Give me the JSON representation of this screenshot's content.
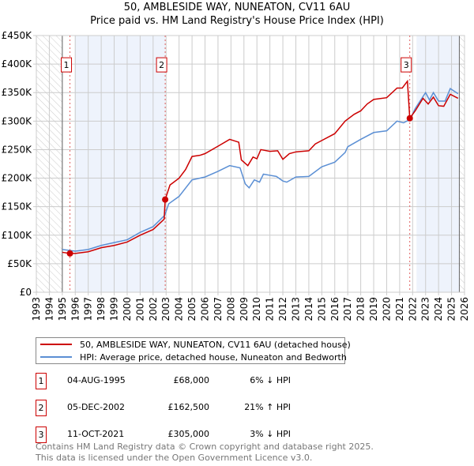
{
  "chart_data": {
    "type": "line",
    "title": "50, AMBLESIDE WAY, NUNEATON, CV11 6AU",
    "subtitle": "Price paid vs. HM Land Registry's House Price Index (HPI)",
    "xlim": [
      1993,
      2026
    ],
    "ylim": [
      0,
      450000
    ],
    "x_ticks": [
      "1993",
      "1994",
      "1995",
      "1996",
      "1997",
      "1998",
      "1999",
      "2000",
      "2001",
      "2002",
      "2003",
      "2004",
      "2005",
      "2006",
      "2007",
      "2008",
      "2009",
      "2010",
      "2011",
      "2012",
      "2013",
      "2014",
      "2015",
      "2016",
      "2017",
      "2018",
      "2019",
      "2020",
      "2021",
      "2022",
      "2023",
      "2024",
      "2025",
      "2026"
    ],
    "y_ticks": [
      {
        "v": 0,
        "l": "£0"
      },
      {
        "v": 50000,
        "l": "£50K"
      },
      {
        "v": 100000,
        "l": "£100K"
      },
      {
        "v": 150000,
        "l": "£150K"
      },
      {
        "v": 200000,
        "l": "£200K"
      },
      {
        "v": 250000,
        "l": "£250K"
      },
      {
        "v": 300000,
        "l": "£300K"
      },
      {
        "v": 350000,
        "l": "£350K"
      },
      {
        "v": 400000,
        "l": "£400K"
      },
      {
        "v": 450000,
        "l": "£450K"
      }
    ],
    "series": [
      {
        "name": "50, AMBLESIDE WAY, NUNEATON, CV11 6AU (detached house)",
        "color": "#cc0000",
        "x": [
          1995,
          1995.59,
          1996,
          1997,
          1998,
          1999,
          2000,
          2001,
          2002,
          2002.85,
          2002.93,
          2003.3,
          2004,
          2004.5,
          2005,
          2005.6,
          2006,
          2007,
          2007.9,
          2008.6,
          2008.8,
          2009.3,
          2009.7,
          2010,
          2010.3,
          2011,
          2011.6,
          2012,
          2012.5,
          2013,
          2014,
          2014.5,
          2015,
          2016,
          2016.8,
          2017.5,
          2018,
          2018.5,
          2019,
          2020,
          2020.8,
          2021.2,
          2021.6,
          2021.78,
          2022.2,
          2022.8,
          2023.2,
          2023.6,
          2024,
          2024.4,
          2024.9,
          2025.5
        ],
        "y": [
          70000,
          68000,
          68000,
          71000,
          78000,
          82000,
          88000,
          100000,
          110000,
          128000,
          162500,
          188000,
          200000,
          215000,
          238000,
          240000,
          243000,
          256000,
          268000,
          263000,
          232000,
          222000,
          237000,
          234000,
          250000,
          247000,
          248000,
          233000,
          243000,
          246000,
          248000,
          260000,
          266000,
          278000,
          300000,
          312000,
          318000,
          330000,
          338000,
          341000,
          358000,
          358000,
          370000,
          305000,
          318000,
          340000,
          330000,
          342000,
          327000,
          326000,
          347000,
          340000
        ]
      },
      {
        "name": "HPI: Average price, detached house, Nuneaton and Bedworth",
        "color": "#5b8fd4",
        "x": [
          1995,
          1996,
          1997,
          1998,
          1999,
          2000,
          2001,
          2002,
          2002.9,
          2003.2,
          2004,
          2005,
          2006,
          2007,
          2007.9,
          2008.7,
          2009.1,
          2009.4,
          2009.8,
          2010.2,
          2010.5,
          2011,
          2011.5,
          2012,
          2012.3,
          2013,
          2014,
          2015,
          2016,
          2016.8,
          2017,
          2018,
          2019,
          2020,
          2020.8,
          2021.3,
          2021.8,
          2022.2,
          2022.8,
          2023,
          2023.3,
          2023.6,
          2024,
          2024.5,
          2024.9,
          2025.5
        ],
        "y": [
          75000,
          72000,
          75000,
          82000,
          87000,
          92000,
          105000,
          115000,
          135000,
          155000,
          168000,
          197000,
          202000,
          212000,
          222000,
          218000,
          190000,
          183000,
          197000,
          193000,
          207000,
          205000,
          203000,
          195000,
          193000,
          202000,
          203000,
          220000,
          228000,
          245000,
          255000,
          268000,
          280000,
          283000,
          300000,
          297000,
          303000,
          322000,
          343000,
          350000,
          337000,
          350000,
          335000,
          335000,
          357000,
          348000
        ]
      }
    ],
    "sales": [
      {
        "n": "1",
        "x": 1995.59,
        "y": 68000
      },
      {
        "n": "2",
        "x": 2002.93,
        "y": 162500
      },
      {
        "n": "3",
        "x": 2021.78,
        "y": 305000
      }
    ],
    "shaded": [
      [
        1995.95,
        2002.93
      ],
      [
        2022.3,
        2025.6
      ]
    ],
    "hatched": [
      [
        1993,
        1995
      ],
      [
        2025.6,
        2026
      ]
    ],
    "grid": true,
    "legend": "bottom"
  },
  "legend": [
    "50, AMBLESIDE WAY, NUNEATON, CV11 6AU (detached house)",
    "HPI: Average price, detached house, Nuneaton and Bedworth"
  ],
  "transactions": [
    {
      "n": "1",
      "date": "04-AUG-1995",
      "price": "£68,000",
      "hpi": "6% ↓ HPI"
    },
    {
      "n": "2",
      "date": "05-DEC-2002",
      "price": "£162,500",
      "hpi": "21% ↑ HPI"
    },
    {
      "n": "3",
      "date": "11-OCT-2021",
      "price": "£305,000",
      "hpi": "3% ↓ HPI"
    }
  ],
  "footer": [
    "Contains HM Land Registry data © Crown copyright and database right 2025.",
    "This data is licensed under the Open Government Licence v3.0."
  ]
}
